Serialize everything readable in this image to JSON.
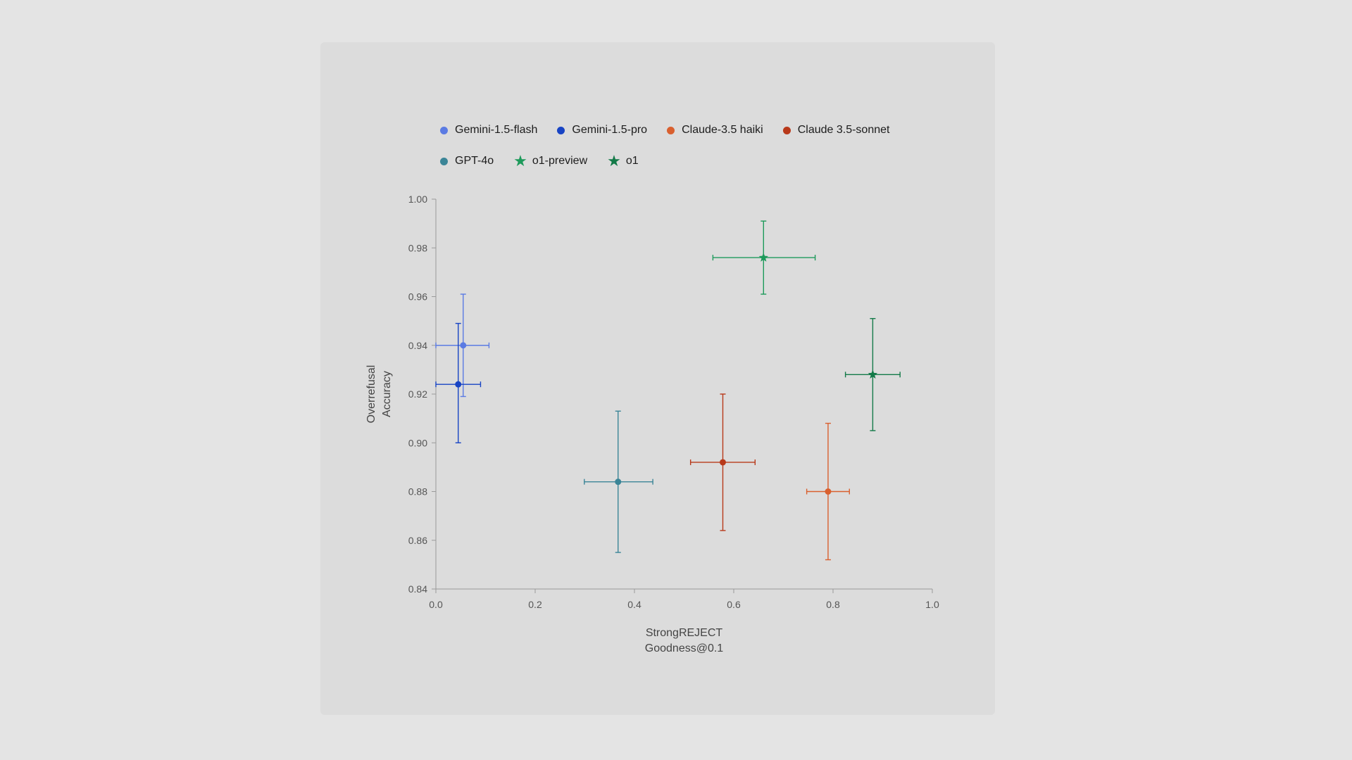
{
  "chart_data": {
    "type": "scatter",
    "xlabel": [
      "StrongREJECT",
      "Goodness@0.1"
    ],
    "ylabel": [
      "Overrefusal",
      "Accuracy"
    ],
    "xlim": [
      0.0,
      1.0
    ],
    "ylim": [
      0.84,
      1.0
    ],
    "x_ticks": [
      "0.0",
      "0.2",
      "0.4",
      "0.6",
      "0.8",
      "1.0"
    ],
    "y_ticks": [
      "0.84",
      "0.86",
      "0.88",
      "0.90",
      "0.92",
      "0.94",
      "0.96",
      "0.98",
      "1.00"
    ],
    "grid": false,
    "legend_placement": "top",
    "series": [
      {
        "name": "Gemini-1.5-flash",
        "marker": "circle",
        "color": "#5b7be3",
        "x": 0.055,
        "y": 0.94,
        "x_err": [
          0.0,
          0.107
        ],
        "y_err": [
          0.919,
          0.961
        ]
      },
      {
        "name": "Gemini-1.5-pro",
        "marker": "circle",
        "color": "#1844c4",
        "x": 0.045,
        "y": 0.924,
        "x_err": [
          0.0,
          0.09
        ],
        "y_err": [
          0.9,
          0.949
        ]
      },
      {
        "name": "Claude-3.5 haiki",
        "marker": "circle",
        "color": "#d9602f",
        "x": 0.79,
        "y": 0.88,
        "x_err": [
          0.747,
          0.833
        ],
        "y_err": [
          0.852,
          0.908
        ]
      },
      {
        "name": "Claude 3.5-sonnet",
        "marker": "circle",
        "color": "#b8391a",
        "x": 0.578,
        "y": 0.892,
        "x_err": [
          0.513,
          0.643
        ],
        "y_err": [
          0.864,
          0.92
        ]
      },
      {
        "name": "GPT-4o",
        "marker": "circle",
        "color": "#3b8597",
        "x": 0.367,
        "y": 0.884,
        "x_err": [
          0.299,
          0.437
        ],
        "y_err": [
          0.855,
          0.913
        ]
      },
      {
        "name": "o1-preview",
        "marker": "star",
        "color": "#1e9a5b",
        "x": 0.66,
        "y": 0.976,
        "x_err": [
          0.558,
          0.764
        ],
        "y_err": [
          0.961,
          0.991
        ]
      },
      {
        "name": "o1",
        "marker": "star",
        "color": "#137a48",
        "x": 0.88,
        "y": 0.928,
        "x_err": [
          0.825,
          0.935
        ],
        "y_err": [
          0.905,
          0.951
        ]
      }
    ]
  }
}
